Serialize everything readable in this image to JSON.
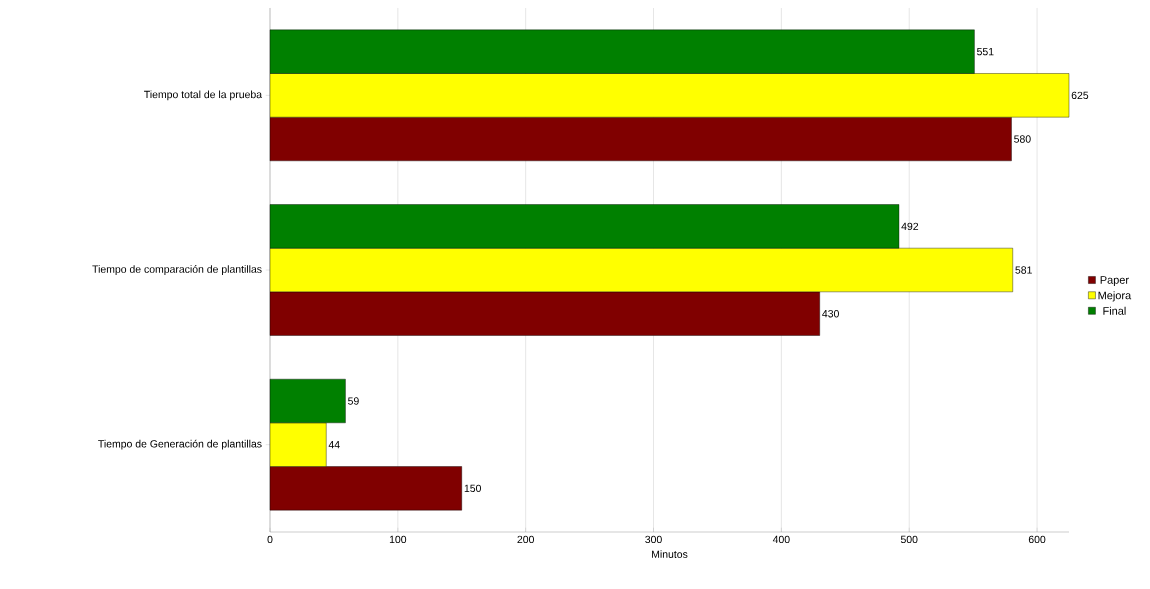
{
  "chart_data": {
    "type": "bar",
    "orientation": "horizontal",
    "xlabel": "Minutos",
    "categories": [
      "Tiempo total de la prueba",
      "Tiempo de comparación de plantillas",
      "Tiempo de Generación de plantillas"
    ],
    "series": [
      {
        "name": "Paper",
        "color": "#800000",
        "values": [
          580,
          430,
          150
        ]
      },
      {
        "name": "Mejora",
        "color": "#ffff00",
        "values": [
          625,
          581,
          44
        ]
      },
      {
        "name": "Final",
        "color": "#008000",
        "values": [
          551,
          492,
          59
        ]
      }
    ],
    "xlim": [
      0,
      625
    ],
    "xticks": [
      0,
      100,
      200,
      300,
      400,
      500,
      600
    ],
    "grid": "x",
    "legend": "right",
    "data_labels": true
  }
}
